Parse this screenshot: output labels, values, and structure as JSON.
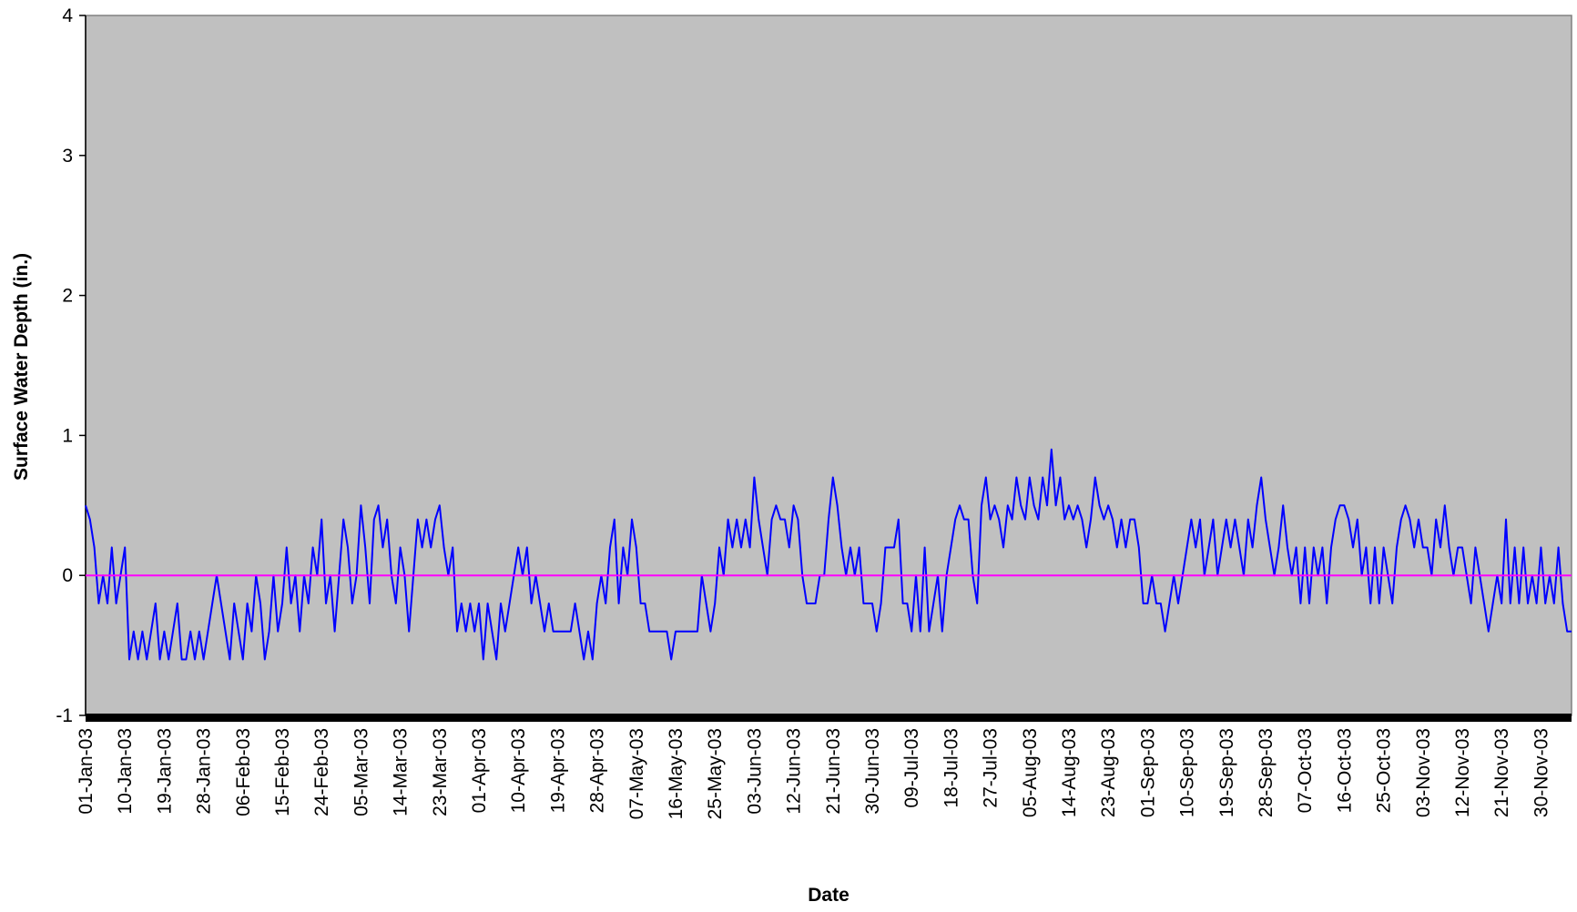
{
  "chart_data": {
    "type": "line",
    "y_label": "Surface Water Depth (in.)",
    "x_label": "Date",
    "color": "#0000ff",
    "background": "#c0c0c0",
    "reference_lines": [
      {
        "value": 0,
        "color": "#ff00ff"
      }
    ],
    "ylim": [
      -1,
      4
    ],
    "yticks": [
      -1,
      0,
      1,
      2,
      3,
      4
    ],
    "categories": [
      "01-Jan-03",
      null,
      null,
      null,
      null,
      null,
      null,
      null,
      null,
      "10-Jan-03",
      null,
      null,
      null,
      null,
      null,
      null,
      null,
      null,
      "19-Jan-03",
      null,
      null,
      null,
      null,
      null,
      null,
      null,
      null,
      "28-Jan-03",
      null,
      null,
      null,
      null,
      null,
      null,
      null,
      null,
      "06-Feb-03",
      null,
      null,
      null,
      null,
      null,
      null,
      null,
      null,
      "15-Feb-03",
      null,
      null,
      null,
      null,
      null,
      null,
      null,
      null,
      "24-Feb-03",
      null,
      null,
      null,
      null,
      null,
      null,
      null,
      null,
      "05-Mar-03",
      null,
      null,
      null,
      null,
      null,
      null,
      null,
      null,
      "14-Mar-03",
      null,
      null,
      null,
      null,
      null,
      null,
      null,
      null,
      "23-Mar-03",
      null,
      null,
      null,
      null,
      null,
      null,
      null,
      null,
      "01-Apr-03",
      null,
      null,
      null,
      null,
      null,
      null,
      null,
      null,
      "10-Apr-03",
      null,
      null,
      null,
      null,
      null,
      null,
      null,
      null,
      "19-Apr-03",
      null,
      null,
      null,
      null,
      null,
      null,
      null,
      null,
      "28-Apr-03",
      null,
      null,
      null,
      null,
      null,
      null,
      null,
      null,
      "07-May-03",
      null,
      null,
      null,
      null,
      null,
      null,
      null,
      null,
      "16-May-03",
      null,
      null,
      null,
      null,
      null,
      null,
      null,
      null,
      "25-May-03",
      null,
      null,
      null,
      null,
      null,
      null,
      null,
      null,
      "03-Jun-03",
      null,
      null,
      null,
      null,
      null,
      null,
      null,
      null,
      "12-Jun-03",
      null,
      null,
      null,
      null,
      null,
      null,
      null,
      null,
      "21-Jun-03",
      null,
      null,
      null,
      null,
      null,
      null,
      null,
      null,
      "30-Jun-03",
      null,
      null,
      null,
      null,
      null,
      null,
      null,
      null,
      "09-Jul-03",
      null,
      null,
      null,
      null,
      null,
      null,
      null,
      null,
      "18-Jul-03",
      null,
      null,
      null,
      null,
      null,
      null,
      null,
      null,
      "27-Jul-03",
      null,
      null,
      null,
      null,
      null,
      null,
      null,
      null,
      "05-Aug-03",
      null,
      null,
      null,
      null,
      null,
      null,
      null,
      null,
      "14-Aug-03",
      null,
      null,
      null,
      null,
      null,
      null,
      null,
      null,
      "23-Aug-03",
      null,
      null,
      null,
      null,
      null,
      null,
      null,
      null,
      "01-Sep-03",
      null,
      null,
      null,
      null,
      null,
      null,
      null,
      null,
      "10-Sep-03",
      null,
      null,
      null,
      null,
      null,
      null,
      null,
      null,
      "19-Sep-03",
      null,
      null,
      null,
      null,
      null,
      null,
      null,
      null,
      "28-Sep-03",
      null,
      null,
      null,
      null,
      null,
      null,
      null,
      null,
      "07-Oct-03",
      null,
      null,
      null,
      null,
      null,
      null,
      null,
      null,
      "16-Oct-03",
      null,
      null,
      null,
      null,
      null,
      null,
      null,
      null,
      "25-Oct-03",
      null,
      null,
      null,
      null,
      null,
      null,
      null,
      null,
      "03-Nov-03",
      null,
      null,
      null,
      null,
      null,
      null,
      null,
      null,
      "12-Nov-03",
      null,
      null,
      null,
      null,
      null,
      null,
      null,
      null,
      "21-Nov-03",
      null,
      null,
      null,
      null,
      null,
      null,
      null,
      null,
      "30-Nov-03",
      null,
      null,
      null,
      null,
      null,
      null,
      null
    ],
    "values": [
      0.5,
      0.4,
      0.2,
      -0.2,
      0,
      -0.2,
      0.2,
      -0.2,
      0,
      0.2,
      -0.6,
      -0.4,
      -0.6,
      -0.4,
      -0.6,
      -0.4,
      -0.2,
      -0.6,
      -0.4,
      -0.6,
      -0.4,
      -0.2,
      -0.6,
      -0.6,
      -0.4,
      -0.6,
      -0.4,
      -0.6,
      -0.4,
      -0.2,
      0,
      -0.2,
      -0.4,
      -0.6,
      -0.2,
      -0.4,
      -0.6,
      -0.2,
      -0.4,
      0,
      -0.2,
      -0.6,
      -0.4,
      0,
      -0.4,
      -0.2,
      0.2,
      -0.2,
      0,
      -0.4,
      0,
      -0.2,
      0.2,
      0,
      0.4,
      -0.2,
      0,
      -0.4,
      0,
      0.4,
      0.2,
      -0.2,
      0,
      0.5,
      0.2,
      -0.2,
      0.4,
      0.5,
      0.2,
      0.4,
      0,
      -0.2,
      0.2,
      0,
      -0.4,
      0,
      0.4,
      0.2,
      0.4,
      0.2,
      0.4,
      0.5,
      0.2,
      0,
      0.2,
      -0.4,
      -0.2,
      -0.4,
      -0.2,
      -0.4,
      -0.2,
      -0.6,
      -0.2,
      -0.4,
      -0.6,
      -0.2,
      -0.4,
      -0.2,
      0,
      0.2,
      0,
      0.2,
      -0.2,
      0,
      -0.2,
      -0.4,
      -0.2,
      -0.4,
      -0.4,
      -0.4,
      -0.4,
      -0.4,
      -0.2,
      -0.4,
      -0.6,
      -0.4,
      -0.6,
      -0.2,
      0,
      -0.2,
      0.2,
      0.4,
      -0.2,
      0.2,
      0,
      0.4,
      0.2,
      -0.2,
      -0.2,
      -0.4,
      -0.4,
      -0.4,
      -0.4,
      -0.4,
      -0.6,
      -0.4,
      -0.4,
      -0.4,
      -0.4,
      -0.4,
      -0.4,
      0,
      -0.2,
      -0.4,
      -0.2,
      0.2,
      0,
      0.4,
      0.2,
      0.4,
      0.2,
      0.4,
      0.2,
      0.7,
      0.4,
      0.2,
      0,
      0.4,
      0.5,
      0.4,
      0.4,
      0.2,
      0.5,
      0.4,
      0,
      -0.2,
      -0.2,
      -0.2,
      0,
      0,
      0.4,
      0.7,
      0.5,
      0.2,
      0,
      0.2,
      0,
      0.2,
      -0.2,
      -0.2,
      -0.2,
      -0.4,
      -0.2,
      0.2,
      0.2,
      0.2,
      0.4,
      -0.2,
      -0.2,
      -0.4,
      0,
      -0.4,
      0.2,
      -0.4,
      -0.2,
      0,
      -0.4,
      0,
      0.2,
      0.4,
      0.5,
      0.4,
      0.4,
      0,
      -0.2,
      0.5,
      0.7,
      0.4,
      0.5,
      0.4,
      0.2,
      0.5,
      0.4,
      0.7,
      0.5,
      0.4,
      0.7,
      0.5,
      0.4,
      0.7,
      0.5,
      0.9,
      0.5,
      0.7,
      0.4,
      0.5,
      0.4,
      0.5,
      0.4,
      0.2,
      0.4,
      0.7,
      0.5,
      0.4,
      0.5,
      0.4,
      0.2,
      0.4,
      0.2,
      0.4,
      0.4,
      0.2,
      -0.2,
      -0.2,
      0,
      -0.2,
      -0.2,
      -0.4,
      -0.2,
      0,
      -0.2,
      0,
      0.2,
      0.4,
      0.2,
      0.4,
      0,
      0.2,
      0.4,
      0,
      0.2,
      0.4,
      0.2,
      0.4,
      0.2,
      0,
      0.4,
      0.2,
      0.5,
      0.7,
      0.4,
      0.2,
      0,
      0.2,
      0.5,
      0.2,
      0,
      0.2,
      -0.2,
      0.2,
      -0.2,
      0.2,
      0,
      0.2,
      -0.2,
      0.2,
      0.4,
      0.5,
      0.5,
      0.4,
      0.2,
      0.4,
      0,
      0.2,
      -0.2,
      0.2,
      -0.2,
      0.2,
      0,
      -0.2,
      0.2,
      0.4,
      0.5,
      0.4,
      0.2,
      0.4,
      0.2,
      0.2,
      0,
      0.4,
      0.2,
      0.5,
      0.2,
      0,
      0.2,
      0.2,
      0,
      -0.2,
      0.2,
      0,
      -0.2,
      -0.4,
      -0.2,
      0,
      -0.2,
      0.4,
      -0.2,
      0.2,
      -0.2,
      0.2,
      -0.2,
      0,
      -0.2,
      0.2,
      -0.2,
      0,
      -0.2,
      0.2,
      -0.2,
      -0.4,
      -0.4
    ]
  }
}
